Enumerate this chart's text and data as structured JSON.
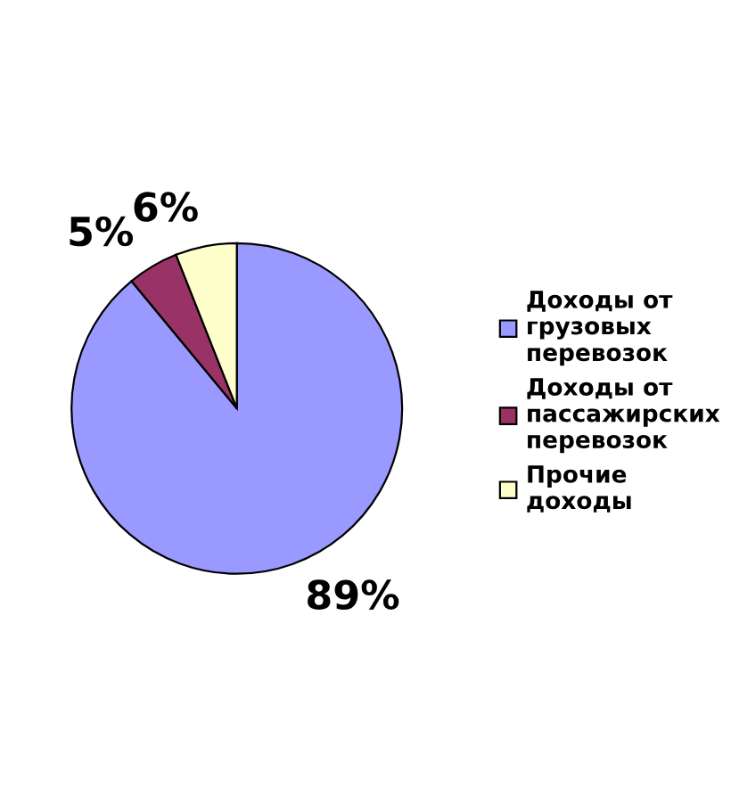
{
  "chart_data": {
    "type": "pie",
    "categories": [
      "Доходы от грузовых перевозок",
      "Доходы от пассажирских перевозок",
      "Прочие доходы"
    ],
    "values": [
      89,
      5,
      6
    ],
    "colors": [
      "#9999ff",
      "#993366",
      "#ffffcc"
    ],
    "value_labels": [
      "89%",
      "5%",
      "6%"
    ],
    "legend": "right"
  }
}
